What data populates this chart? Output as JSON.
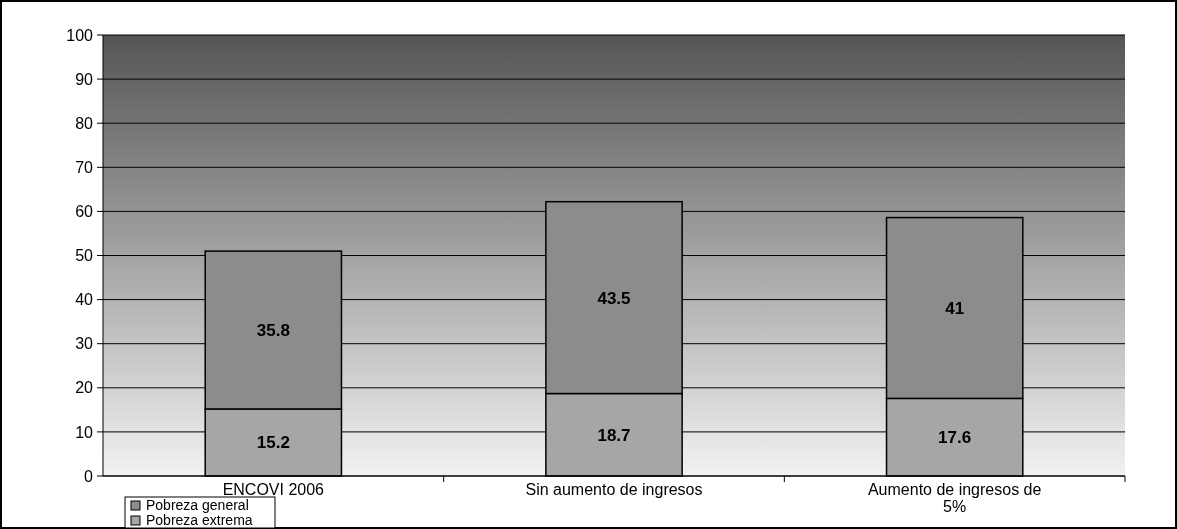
{
  "chart_data": {
    "type": "bar",
    "stacked": true,
    "categories": [
      "ENCOVI 2006",
      "Sin aumento de ingresos",
      "Aumento de ingresos de 5%"
    ],
    "series": [
      {
        "name": "Pobreza extrema",
        "color": "#a6a6a6",
        "values": [
          15.2,
          18.7,
          17.6
        ]
      },
      {
        "name": "Pobreza general",
        "color": "#8c8c8c",
        "values": [
          35.8,
          43.5,
          41
        ]
      }
    ],
    "ylim": [
      0,
      100
    ],
    "yticks": [
      0,
      10,
      20,
      30,
      40,
      50,
      60,
      70,
      80,
      90,
      100
    ],
    "grid": "y",
    "data_labels": true,
    "legend": "bottom left"
  }
}
